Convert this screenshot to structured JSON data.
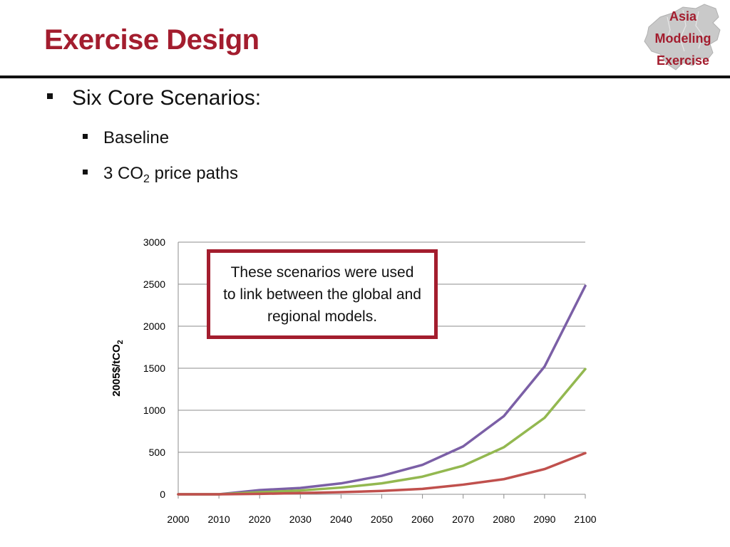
{
  "slide": {
    "title": "Exercise Design",
    "logo_lines": [
      "Asia",
      "Modeling",
      "Exercise"
    ],
    "bullets": {
      "level1": "Six Core Scenarios:",
      "level2": [
        "Baseline",
        "3 CO",
        "2",
        " price paths"
      ]
    },
    "callout": "These scenarios were used to link between the global and regional models."
  },
  "chart_data": {
    "type": "line",
    "ylabel": "2005$/tCO",
    "ylabel_sub": "2",
    "xlabel": "",
    "x": [
      2000,
      2010,
      2020,
      2030,
      2040,
      2050,
      2060,
      2070,
      2080,
      2090,
      2100
    ],
    "ylim": [
      0,
      3000
    ],
    "yticks": [
      0,
      500,
      1000,
      1500,
      2000,
      2500,
      3000
    ],
    "grid": true,
    "legend": "none",
    "series": [
      {
        "color": "#7b5fa6",
        "values": [
          0,
          0,
          50,
          75,
          130,
          220,
          350,
          570,
          930,
          1520,
          2480
        ]
      },
      {
        "color": "#93b850",
        "values": [
          0,
          0,
          25,
          45,
          80,
          130,
          210,
          340,
          560,
          910,
          1490
        ]
      },
      {
        "color": "#c0504d",
        "values": [
          0,
          0,
          5,
          15,
          25,
          40,
          65,
          115,
          180,
          300,
          490
        ]
      }
    ]
  }
}
